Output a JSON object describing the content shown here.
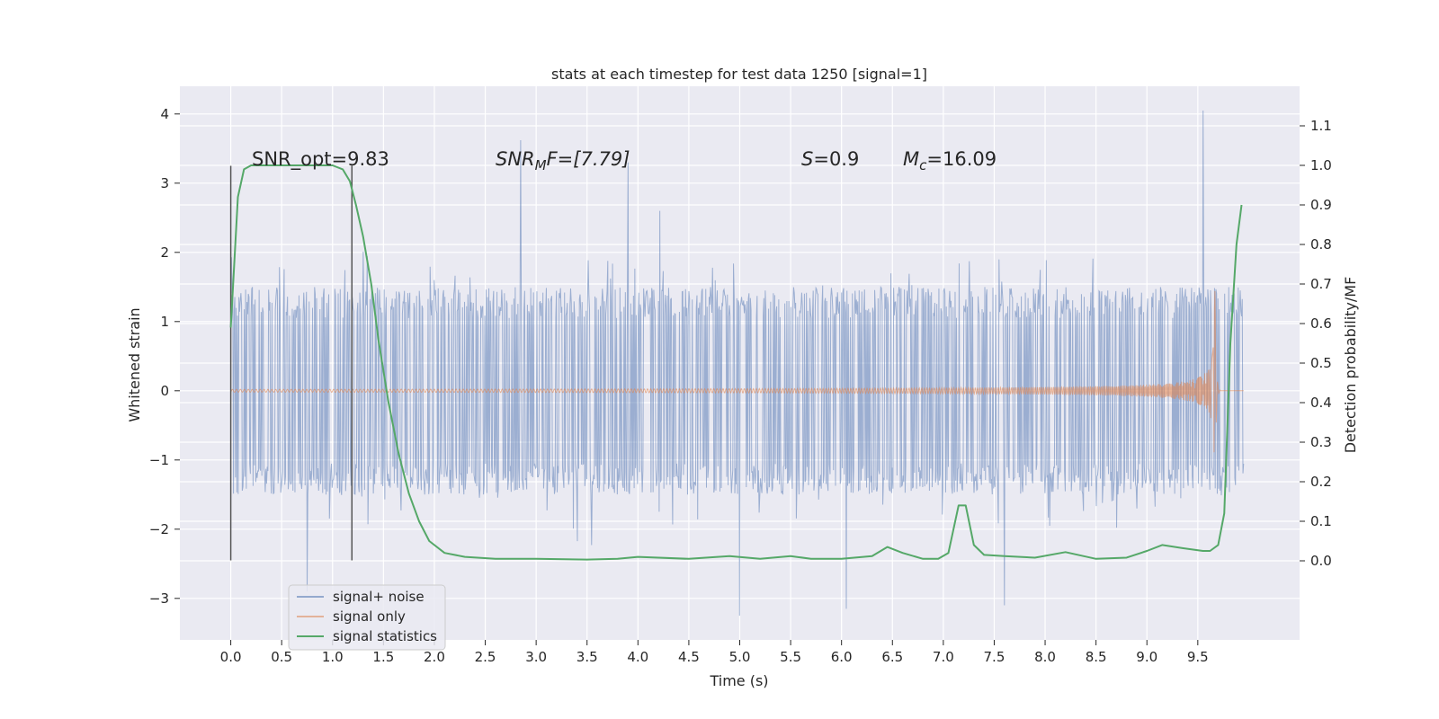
{
  "chart_data": {
    "type": "line",
    "title": "stats at each timestep for test data 1250 [signal=1]",
    "xlabel": "Time (s)",
    "ylabel_left": "Whitened strain",
    "ylabel_right": "Detection probability/MF",
    "xlim": [
      -0.5,
      10.5
    ],
    "ylim_left": [
      -3.6,
      4.4
    ],
    "ylim_right": [
      -0.2,
      1.2
    ],
    "x_ticks": [
      "0.0",
      "0.5",
      "1.0",
      "1.5",
      "2.0",
      "2.5",
      "3.0",
      "3.5",
      "4.0",
      "4.5",
      "5.0",
      "5.5",
      "6.0",
      "6.5",
      "7.0",
      "7.5",
      "8.0",
      "8.5",
      "9.0",
      "9.5"
    ],
    "y_ticks_left": [
      "4",
      "3",
      "2",
      "1",
      "0",
      "−1",
      "−2",
      "−3"
    ],
    "y_ticks_right": [
      "1.1",
      "1.0",
      "0.9",
      "0.8",
      "0.7",
      "0.6",
      "0.5",
      "0.4",
      "0.3",
      "0.2",
      "0.1",
      "0.0"
    ],
    "annotations": {
      "snr_opt": "SNR_opt=9.83",
      "snr_mf_main": "SNR",
      "snr_mf_sub": "M",
      "snr_mf_rest": "F=[7.79]",
      "s_main": "S",
      "s_rest": "=0.9",
      "mc_main": "M",
      "mc_sub": "c",
      "mc_rest": "=16.09"
    },
    "vlines": [
      0.0,
      1.19
    ],
    "series": [
      {
        "name": "signal+ noise",
        "color": "#4c72b0",
        "axis": "left",
        "x_range": [
          0.0,
          9.95
        ],
        "envelope_typical": 1.5,
        "peaks": [
          [
            9.55,
            4.05
          ],
          [
            2.85,
            3.62
          ],
          [
            3.9,
            3.3
          ],
          [
            0.75,
            -2.9
          ],
          [
            5.0,
            -3.25
          ],
          [
            6.05,
            -3.15
          ],
          [
            7.6,
            -3.1
          ]
        ]
      },
      {
        "name": "signal only",
        "color": "#dd8452",
        "axis": "left",
        "x_range": [
          0.0,
          9.95
        ],
        "peak_time": 9.67,
        "peak_amplitude": 1.5
      },
      {
        "name": "signal statistics",
        "color": "#55a868",
        "axis": "right",
        "x": [
          0.0,
          0.07,
          0.13,
          0.2,
          0.3,
          0.5,
          0.8,
          1.0,
          1.1,
          1.17,
          1.23,
          1.3,
          1.38,
          1.45,
          1.55,
          1.65,
          1.75,
          1.85,
          1.95,
          2.1,
          2.3,
          2.6,
          3.0,
          3.5,
          3.8,
          4.0,
          4.5,
          4.9,
          5.2,
          5.5,
          5.7,
          6.0,
          6.3,
          6.45,
          6.6,
          6.8,
          6.95,
          7.05,
          7.15,
          7.22,
          7.3,
          7.4,
          7.6,
          7.9,
          8.2,
          8.5,
          8.8,
          9.0,
          9.15,
          9.35,
          9.55,
          9.62,
          9.7,
          9.76,
          9.82,
          9.88,
          9.93
        ],
        "y": [
          0.59,
          0.92,
          0.99,
          1.0,
          1.0,
          1.0,
          1.0,
          1.0,
          0.99,
          0.96,
          0.9,
          0.82,
          0.7,
          0.56,
          0.4,
          0.27,
          0.17,
          0.1,
          0.05,
          0.02,
          0.01,
          0.005,
          0.005,
          0.003,
          0.005,
          0.01,
          0.005,
          0.012,
          0.005,
          0.012,
          0.005,
          0.005,
          0.012,
          0.035,
          0.02,
          0.005,
          0.005,
          0.02,
          0.14,
          0.14,
          0.04,
          0.015,
          0.012,
          0.008,
          0.022,
          0.005,
          0.008,
          0.025,
          0.04,
          0.032,
          0.025,
          0.025,
          0.04,
          0.12,
          0.55,
          0.8,
          0.9
        ]
      }
    ],
    "grid": true,
    "legend_position": "lower-left"
  }
}
